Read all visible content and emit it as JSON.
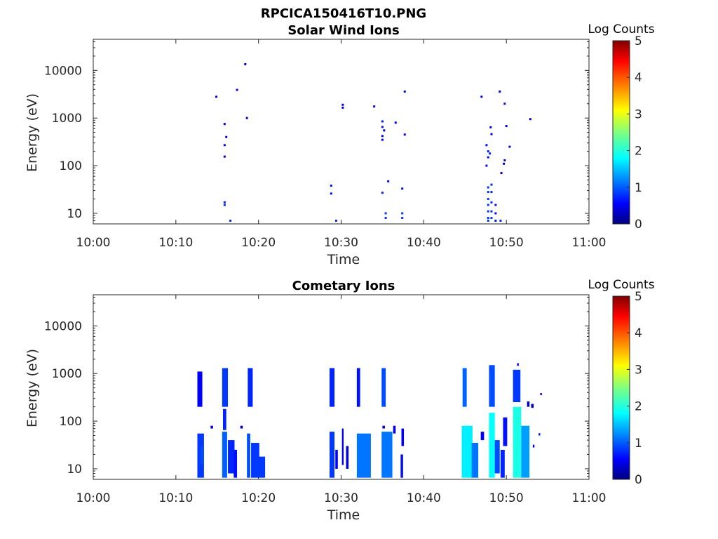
{
  "figure_title": "RPCICA150416T10.PNG",
  "chart_data": [
    {
      "type": "heatmap",
      "title": "Solar Wind Ions",
      "xlabel": "Time",
      "ylabel": "Energy (eV)",
      "x_ticks": [
        "10:00",
        "10:10",
        "10:20",
        "10:30",
        "10:40",
        "10:50",
        "11:00"
      ],
      "xlim_minutes": [
        0,
        60
      ],
      "y_scale": "log",
      "y_ticks": [
        "10",
        "100",
        "1000",
        "10000"
      ],
      "ylim": [
        6,
        45000
      ],
      "colorbar": {
        "label": "Log Counts",
        "ticks": [
          "0",
          "1",
          "2",
          "3",
          "4",
          "5"
        ],
        "range": [
          0,
          5
        ],
        "colormap": "jet"
      },
      "cells": [
        [
          14.9,
          2800,
          0.6
        ],
        [
          15.9,
          750,
          0.5
        ],
        [
          16.1,
          400,
          0.5
        ],
        [
          15.9,
          270,
          0.6
        ],
        [
          15.9,
          155,
          0.5
        ],
        [
          15.9,
          17,
          0.8
        ],
        [
          15.9,
          15,
          0.8
        ],
        [
          16.6,
          7,
          0.8
        ],
        [
          17.4,
          3900,
          0.6
        ],
        [
          18.4,
          13500,
          0.5
        ],
        [
          18.6,
          1000,
          0.5
        ],
        [
          28.8,
          38,
          0.7
        ],
        [
          28.8,
          26,
          0.7
        ],
        [
          29.4,
          7,
          0.8
        ],
        [
          30.2,
          1900,
          0.6
        ],
        [
          30.2,
          1650,
          0.6
        ],
        [
          34.0,
          1750,
          0.6
        ],
        [
          35.0,
          850,
          0.7
        ],
        [
          35.0,
          650,
          0.7
        ],
        [
          35.2,
          550,
          0.6
        ],
        [
          35.0,
          420,
          0.6
        ],
        [
          35.0,
          350,
          0.6
        ],
        [
          35.0,
          27,
          0.8
        ],
        [
          35.4,
          10,
          0.9
        ],
        [
          35.4,
          8,
          0.9
        ],
        [
          35.7,
          47,
          0.6
        ],
        [
          36.6,
          800,
          0.6
        ],
        [
          37.4,
          33,
          0.7
        ],
        [
          37.4,
          10,
          0.9
        ],
        [
          37.4,
          8,
          0.9
        ],
        [
          37.7,
          3600,
          0.6
        ],
        [
          37.7,
          450,
          0.6
        ],
        [
          47.0,
          2800,
          0.6
        ],
        [
          47.6,
          270,
          0.7
        ],
        [
          47.8,
          200,
          0.8
        ],
        [
          48.0,
          180,
          0.8
        ],
        [
          47.8,
          150,
          0.7
        ],
        [
          47.6,
          100,
          0.7
        ],
        [
          48.1,
          640,
          0.6
        ],
        [
          48.2,
          460,
          0.6
        ],
        [
          47.8,
          35,
          0.9
        ],
        [
          47.8,
          28,
          0.9
        ],
        [
          47.8,
          20,
          0.9
        ],
        [
          47.8,
          15,
          0.9
        ],
        [
          47.8,
          11,
          0.9
        ],
        [
          47.8,
          8,
          0.9
        ],
        [
          47.8,
          7,
          0.9
        ],
        [
          48.2,
          40,
          0.8
        ],
        [
          48.2,
          28,
          0.8
        ],
        [
          48.2,
          17,
          0.8
        ],
        [
          48.2,
          11,
          0.9
        ],
        [
          48.2,
          8,
          0.9
        ],
        [
          48.7,
          15,
          0.7
        ],
        [
          48.7,
          10,
          0.7
        ],
        [
          48.7,
          7,
          0.7
        ],
        [
          49.2,
          3600,
          0.6
        ],
        [
          49.4,
          70,
          0.3
        ],
        [
          49.7,
          110,
          0.4
        ],
        [
          49.8,
          130,
          0.4
        ],
        [
          49.3,
          7,
          0.8
        ],
        [
          49.8,
          2000,
          0.6
        ],
        [
          50.0,
          680,
          0.6
        ],
        [
          50.4,
          250,
          0.6
        ],
        [
          52.9,
          950,
          0.6
        ]
      ]
    },
    {
      "type": "heatmap",
      "title": "Cometary Ions",
      "xlabel": "Time",
      "ylabel": "Energy (eV)",
      "x_ticks": [
        "10:00",
        "10:10",
        "10:20",
        "10:30",
        "10:40",
        "10:50",
        "11:00"
      ],
      "xlim_minutes": [
        0,
        60
      ],
      "y_scale": "log",
      "y_ticks": [
        "10",
        "100",
        "1000",
        "10000"
      ],
      "ylim": [
        6,
        45000
      ],
      "colorbar": {
        "label": "Log Counts",
        "ticks": [
          "0",
          "1",
          "2",
          "3",
          "4",
          "5"
        ],
        "range": [
          0,
          5
        ],
        "colormap": "jet"
      },
      "blocks": [
        [
          12.6,
          13.2,
          200,
          1100,
          0.6
        ],
        [
          12.6,
          13.4,
          6.5,
          55,
          0.9
        ],
        [
          13.0,
          13.4,
          12,
          30,
          1.0
        ],
        [
          14.2,
          14.5,
          70,
          80,
          0.5
        ],
        [
          15.6,
          16.3,
          200,
          1300,
          0.9
        ],
        [
          15.7,
          16.1,
          65,
          180,
          0.8
        ],
        [
          15.6,
          16.2,
          6.5,
          60,
          1.1
        ],
        [
          16.3,
          17.1,
          8,
          40,
          0.8
        ],
        [
          17.0,
          17.4,
          6.5,
          25,
          0.7
        ],
        [
          18.7,
          19.3,
          200,
          1300,
          0.8
        ],
        [
          18.6,
          19.0,
          6.5,
          55,
          1.0
        ],
        [
          19.1,
          20.1,
          6.5,
          35,
          0.9
        ],
        [
          19.9,
          20.8,
          6.5,
          18,
          0.9
        ],
        [
          17.8,
          18.1,
          70,
          80,
          0.4
        ],
        [
          28.6,
          29.2,
          200,
          1300,
          0.8
        ],
        [
          28.6,
          29.2,
          6.5,
          60,
          0.9
        ],
        [
          29.3,
          29.6,
          10,
          25,
          0.6
        ],
        [
          30.1,
          30.3,
          12,
          70,
          0.6
        ],
        [
          30.6,
          30.9,
          10,
          30,
          0.5
        ],
        [
          31.9,
          32.3,
          200,
          1300,
          0.7
        ],
        [
          31.9,
          33.6,
          6.5,
          55,
          1.2
        ],
        [
          34.9,
          35.4,
          200,
          1300,
          1.0
        ],
        [
          35.0,
          35.3,
          70,
          80,
          0.5
        ],
        [
          34.9,
          36.2,
          6.5,
          60,
          1.2
        ],
        [
          36.3,
          36.6,
          55,
          80,
          0.6
        ],
        [
          37.3,
          37.6,
          30,
          70,
          0.6
        ],
        [
          37.2,
          37.5,
          6.5,
          20,
          0.7
        ],
        [
          44.7,
          45.2,
          200,
          1300,
          1.1
        ],
        [
          44.6,
          45.9,
          6.5,
          80,
          1.8
        ],
        [
          45.8,
          46.6,
          6.5,
          35,
          1.2
        ],
        [
          46.9,
          47.3,
          40,
          60,
          0.6
        ],
        [
          47.9,
          48.6,
          200,
          1500,
          1.0
        ],
        [
          47.9,
          48.6,
          6.5,
          150,
          1.9
        ],
        [
          48.6,
          49.2,
          8,
          40,
          1.0
        ],
        [
          49.3,
          49.8,
          6.5,
          25,
          0.8
        ],
        [
          49.6,
          50.1,
          30,
          120,
          0.7
        ],
        [
          50.8,
          51.7,
          250,
          1200,
          0.9
        ],
        [
          50.8,
          51.8,
          6.5,
          200,
          2.0
        ],
        [
          51.8,
          52.8,
          6.5,
          80,
          1.4
        ],
        [
          52.5,
          52.8,
          200,
          260,
          0.4
        ],
        [
          53.0,
          53.3,
          190,
          230,
          0.4
        ],
        [
          53.2,
          53.4,
          28,
          32,
          0.6
        ],
        [
          53.9,
          54.1,
          50,
          56,
          0.7
        ],
        [
          54.1,
          54.3,
          350,
          390,
          0.4
        ],
        [
          51.3,
          51.5,
          1450,
          1650,
          0.6
        ]
      ]
    }
  ]
}
